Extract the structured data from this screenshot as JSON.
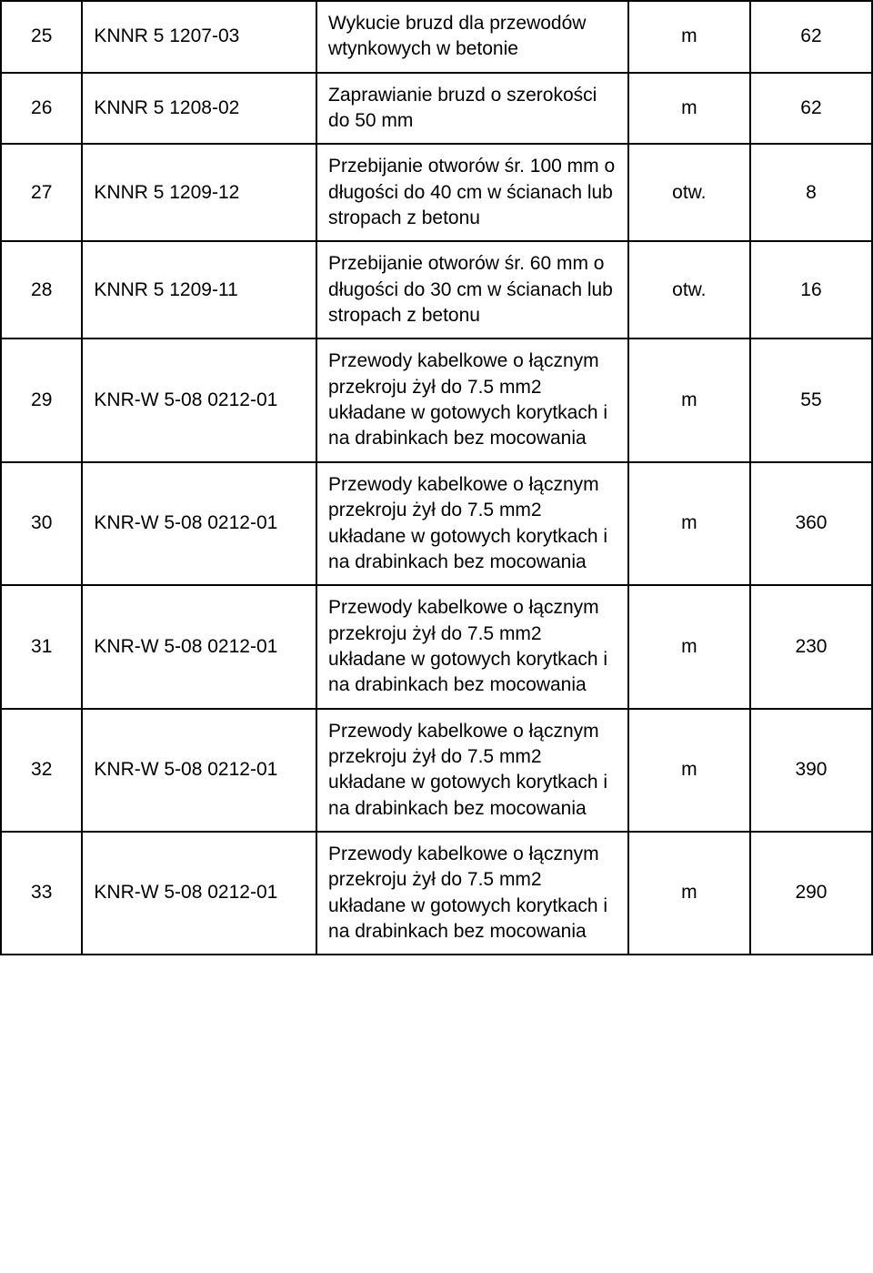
{
  "table": {
    "columns": {
      "num_width": 70,
      "code_width": 260,
      "desc_width": 350,
      "unit_width": 120,
      "qty_width": 120,
      "border_color": "#000000",
      "border_width": 2,
      "text_color": "#000000",
      "background_color": "#ffffff",
      "font_size": 21,
      "font_family": "Arial"
    },
    "rows": [
      {
        "num": "25",
        "code": "KNNR 5 1207-03",
        "desc": "Wykucie bruzd dla przewodów wtynkowych w betonie",
        "unit": "m",
        "qty": "62"
      },
      {
        "num": "26",
        "code": "KNNR 5 1208-02",
        "desc": "Zaprawianie bruzd o szerokości do 50 mm",
        "unit": "m",
        "qty": "62"
      },
      {
        "num": "27",
        "code": "KNNR 5 1209-12",
        "desc": "Przebijanie otworów śr. 100 mm o długości do 40 cm w ścianach lub stropach z betonu",
        "unit": "otw.",
        "qty": "8"
      },
      {
        "num": "28",
        "code": "KNNR 5 1209-11",
        "desc": "Przebijanie otworów śr. 60 mm o długości do 30 cm w ścianach lub stropach z betonu",
        "unit": "otw.",
        "qty": "16"
      },
      {
        "num": "29",
        "code": "KNR-W 5-08 0212-01",
        "desc": "Przewody kabelkowe o łącznym przekroju żył do 7.5 mm2 układane w gotowych korytkach i na drabinkach bez mocowania",
        "unit": "m",
        "qty": "55"
      },
      {
        "num": "30",
        "code": "KNR-W 5-08 0212-01",
        "desc": "Przewody kabelkowe o łącznym przekroju żył do 7.5 mm2 układane w gotowych korytkach i na drabinkach bez mocowania",
        "unit": "m",
        "qty": "360"
      },
      {
        "num": "31",
        "code": "KNR-W 5-08 0212-01",
        "desc": "Przewody kabelkowe o łącznym przekroju żył do 7.5 mm2 układane w gotowych korytkach i na drabinkach bez mocowania",
        "unit": "m",
        "qty": "230"
      },
      {
        "num": "32",
        "code": "KNR-W 5-08 0212-01",
        "desc": "Przewody kabelkowe o łącznym przekroju żył do 7.5 mm2 układane w gotowych korytkach i na drabinkach bez mocowania",
        "unit": "m",
        "qty": "390"
      },
      {
        "num": "33",
        "code": "KNR-W 5-08 0212-01",
        "desc": "Przewody kabelkowe o łącznym przekroju żył do 7.5 mm2 układane w gotowych korytkach i na drabinkach bez mocowania",
        "unit": "m",
        "qty": "290"
      }
    ]
  }
}
